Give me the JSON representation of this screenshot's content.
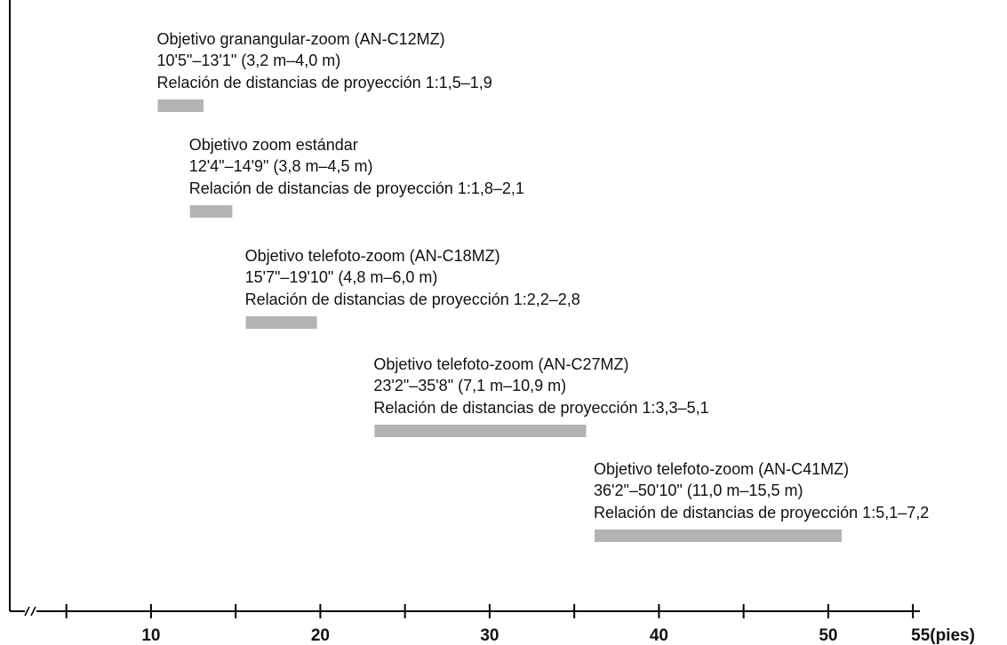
{
  "chart_data": {
    "type": "bar",
    "orientation": "horizontal-range",
    "unit": "(pies)",
    "xlim": [
      0,
      55
    ],
    "axis_break": true,
    "x_ticks_major": [
      10,
      20,
      30,
      40,
      50,
      55
    ],
    "x_ticks_minor": [
      5,
      15,
      25,
      35,
      45
    ],
    "tick_labels": [
      "10",
      "20",
      "30",
      "40",
      "50",
      "55"
    ],
    "bar_color": "#b3b3b3",
    "series": [
      {
        "name": "Objetivo granangular-zoom (AN-C12MZ)",
        "range_label": "10'5\"–13'1\" (3,2 m–4,0 m)",
        "ratio_label": "Relación de distancias de proyección 1:1,5–1,9",
        "start": 10.4,
        "end": 13.1
      },
      {
        "name": "Objetivo zoom estándar",
        "range_label": "12'4\"–14'9\" (3,8 m–4,5 m)",
        "ratio_label": "Relación de distancias de proyección 1:1,8–2,1",
        "start": 12.3,
        "end": 14.8
      },
      {
        "name": "Objetivo telefoto-zoom (AN-C18MZ)",
        "range_label": "15'7\"–19'10\" (4,8 m–6,0 m)",
        "ratio_label": "Relación de distancias de proyección 1:2,2–2,8",
        "start": 15.6,
        "end": 19.8
      },
      {
        "name": "Objetivo telefoto-zoom (AN-C27MZ)",
        "range_label": "23'2\"–35'8\" (7,1 m–10,9 m)",
        "ratio_label": "Relación de distancias de proyección 1:3,3–5,1",
        "start": 23.2,
        "end": 35.7
      },
      {
        "name": "Objetivo telefoto-zoom (AN-C41MZ)",
        "range_label": "36'2\"–50'10\" (11,0 m–15,5 m)",
        "ratio_label": "Relación de distancias de proyección 1:5,1–7,2",
        "start": 36.2,
        "end": 50.8
      }
    ]
  }
}
